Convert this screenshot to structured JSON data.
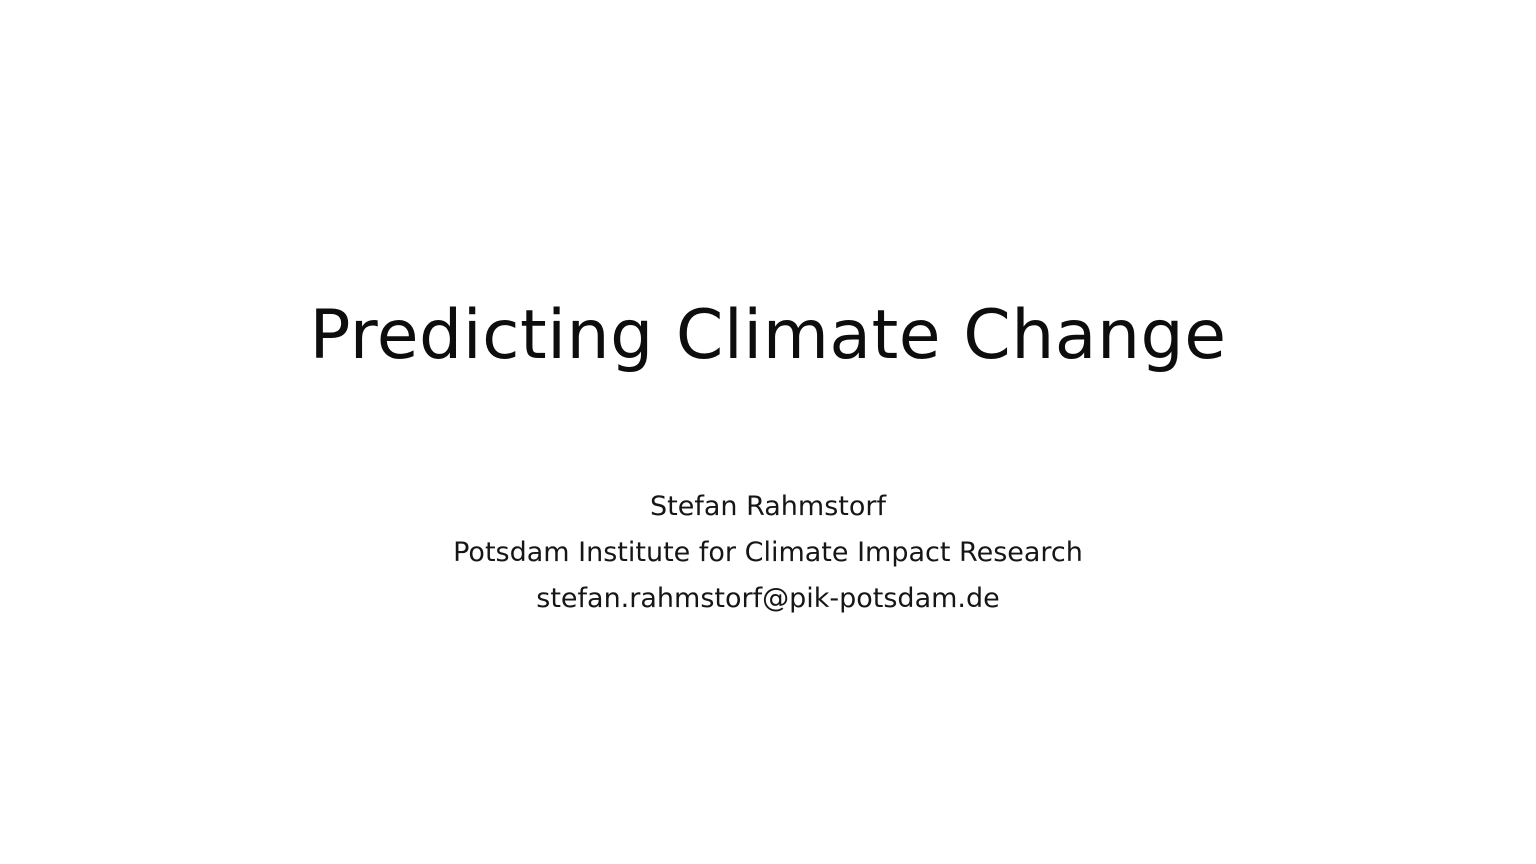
{
  "slide": {
    "title": "Predicting Climate Change",
    "author": "Stefan Rahmstorf",
    "institution": "Potsdam Institute for Climate Impact Research",
    "email": "stefan.rahmstorf@pik-potsdam.de"
  },
  "colors": {
    "background": "#ffffff",
    "text": "#111111"
  }
}
